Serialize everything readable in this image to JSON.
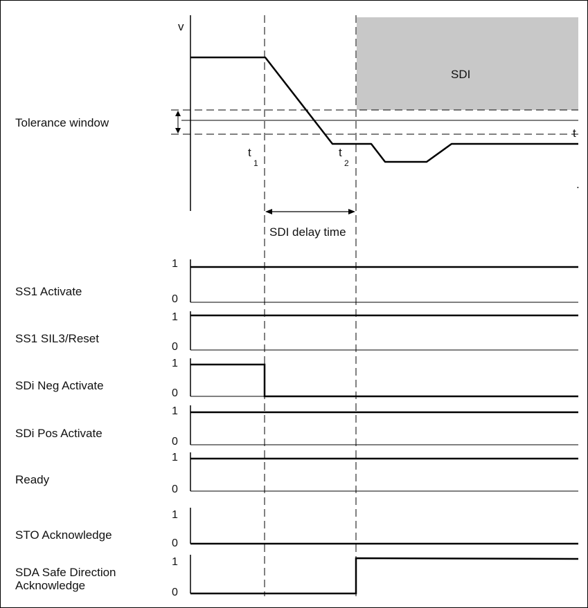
{
  "speed_plot": {
    "y_axis_label": "v",
    "x_axis_label": "t",
    "shaded_region_label": "SDI",
    "tolerance_label": "Tolerance window",
    "t1": {
      "base": "t",
      "sub": "1"
    },
    "t2": {
      "base": "t",
      "sub": "2"
    },
    "delay_label": "SDI delay time"
  },
  "signals": [
    {
      "label_lines": [
        "SS1 Activate"
      ],
      "high": "1",
      "low": "0",
      "state": "high"
    },
    {
      "label_lines": [
        "SS1 SIL3/Reset"
      ],
      "high": "1",
      "low": "0",
      "state": "high"
    },
    {
      "label_lines": [
        "SDi Neg Activate"
      ],
      "high": "1",
      "low": "0",
      "state": "high_then_low_at_t1"
    },
    {
      "label_lines": [
        "SDi Pos Activate"
      ],
      "high": "1",
      "low": "0",
      "state": "high"
    },
    {
      "label_lines": [
        "Ready"
      ],
      "high": "1",
      "low": "0",
      "state": "high"
    },
    {
      "label_lines": [
        "STO Acknowledge"
      ],
      "high": "1",
      "low": "0",
      "state": "low"
    },
    {
      "label_lines": [
        "SDA Safe Direction",
        "Acknowledge"
      ],
      "high": "1",
      "low": "0",
      "state": "low_then_high_at_t2"
    }
  ],
  "colors": {
    "shade": "#c8c8c8",
    "line": "#000000"
  }
}
